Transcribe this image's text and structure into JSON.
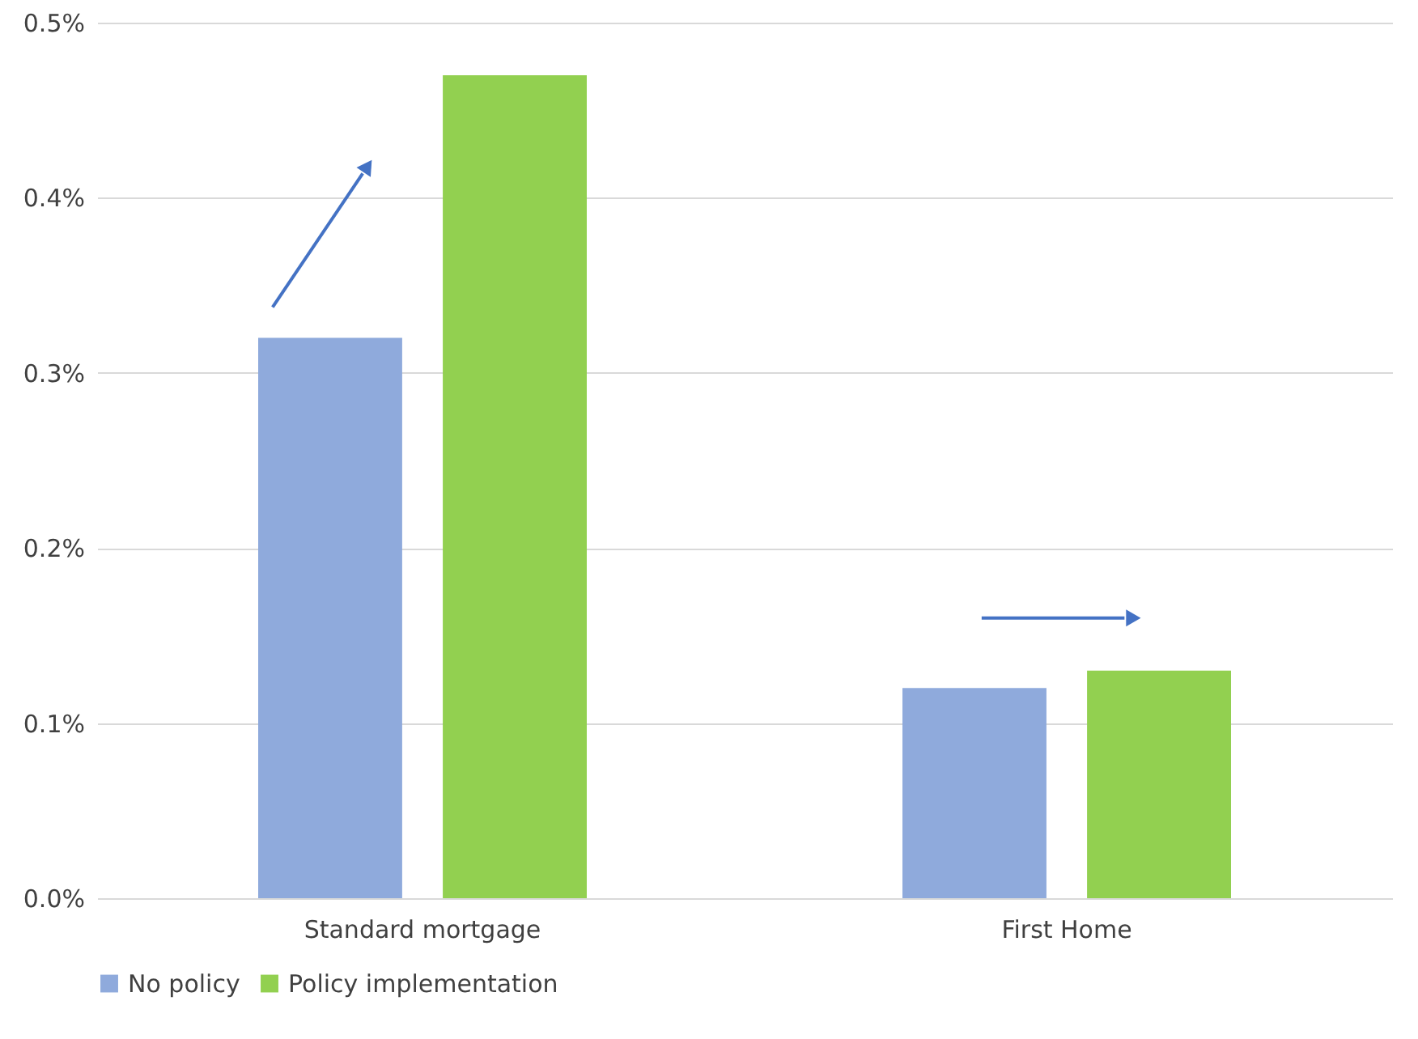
{
  "chart_data": {
    "type": "bar",
    "categories": [
      "Standard mortgage",
      "First Home"
    ],
    "series": [
      {
        "name": "No policy",
        "color": "#8faadc",
        "values": [
          0.32,
          0.12
        ]
      },
      {
        "name": "Policy implementation",
        "color": "#92d050",
        "values": [
          0.47,
          0.13
        ]
      }
    ],
    "ylim": [
      0,
      0.5
    ],
    "yticks": [
      {
        "value": 0,
        "label": "0.0%"
      },
      {
        "value": 0.1,
        "label": "0.1%"
      },
      {
        "value": 0.2,
        "label": "0.2%"
      },
      {
        "value": 0.3,
        "label": "0.3%"
      },
      {
        "value": 0.4,
        "label": "0.4%"
      },
      {
        "value": 0.5,
        "label": "0.5%"
      }
    ],
    "grid": "y",
    "legend": "bottom"
  }
}
